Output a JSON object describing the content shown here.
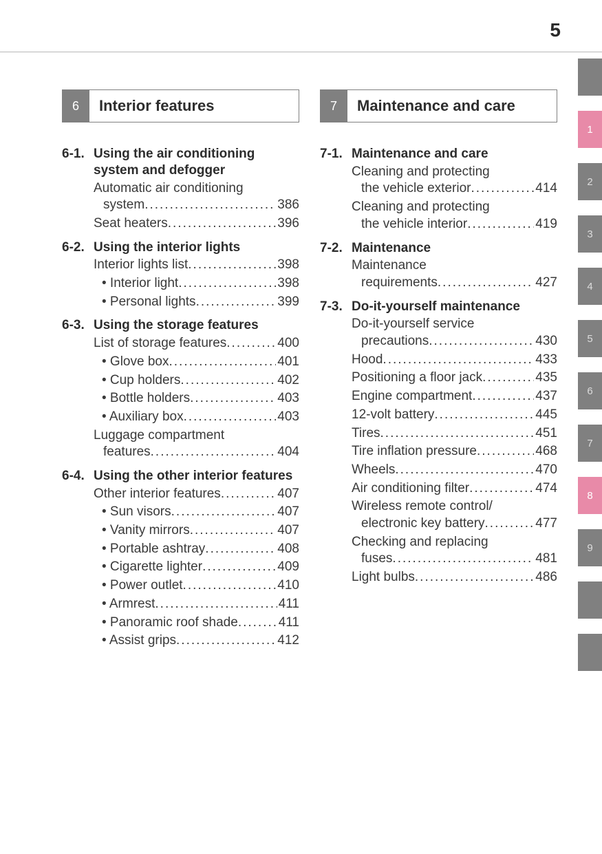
{
  "page_number": "5",
  "colors": {
    "text": "#3a3a3a",
    "heading": "#2d2d2d",
    "tab_gray": "#808080",
    "tab_pink": "#e88aa8",
    "rule": "#b8b8b8",
    "white": "#ffffff"
  },
  "side_tabs": [
    {
      "label": "",
      "style": "blank"
    },
    {
      "label": "1",
      "style": "pink"
    },
    {
      "label": "2",
      "style": "gray"
    },
    {
      "label": "3",
      "style": "gray"
    },
    {
      "label": "4",
      "style": "gray"
    },
    {
      "label": "5",
      "style": "gray"
    },
    {
      "label": "6",
      "style": "gray"
    },
    {
      "label": "7",
      "style": "gray"
    },
    {
      "label": "8",
      "style": "pink"
    },
    {
      "label": "9",
      "style": "gray"
    },
    {
      "label": "",
      "style": "blank"
    },
    {
      "label": "",
      "style": "blank"
    }
  ],
  "left": {
    "chapter_num": "6",
    "chapter_title": "Interior features",
    "sections": [
      {
        "num": "6-1.",
        "title": "Using the air conditioning system and defogger",
        "entries": [
          {
            "text": "Automatic air conditioning",
            "cont": "system",
            "page": "386"
          },
          {
            "text": "Seat heaters",
            "page": "396"
          }
        ]
      },
      {
        "num": "6-2.",
        "title": "Using the interior lights",
        "entries": [
          {
            "text": "Interior lights list",
            "page": "398"
          },
          {
            "text": "• Interior light",
            "page": "398",
            "sub": true
          },
          {
            "text": "• Personal lights",
            "page": "399",
            "sub": true
          }
        ]
      },
      {
        "num": "6-3.",
        "title": "Using the storage features",
        "entries": [
          {
            "text": "List of storage features",
            "page": "400"
          },
          {
            "text": "• Glove box",
            "page": "401",
            "sub": true
          },
          {
            "text": "• Cup holders",
            "page": "402",
            "sub": true
          },
          {
            "text": "• Bottle holders",
            "page": "403",
            "sub": true
          },
          {
            "text": "• Auxiliary box",
            "page": "403",
            "sub": true
          },
          {
            "text": "Luggage compartment",
            "cont": "features",
            "page": "404"
          }
        ]
      },
      {
        "num": "6-4.",
        "title": "Using the other interior features",
        "entries": [
          {
            "text": "Other interior features",
            "page": "407"
          },
          {
            "text": "• Sun visors",
            "page": "407",
            "sub": true
          },
          {
            "text": "• Vanity mirrors",
            "page": "407",
            "sub": true
          },
          {
            "text": "• Portable ashtray",
            "page": "408",
            "sub": true
          },
          {
            "text": "• Cigarette lighter",
            "page": "409",
            "sub": true
          },
          {
            "text": "• Power outlet",
            "page": "410",
            "sub": true
          },
          {
            "text": "• Armrest",
            "page": "411",
            "sub": true
          },
          {
            "text": "• Panoramic roof shade",
            "page": "411",
            "sub": true
          },
          {
            "text": "• Assist grips",
            "page": "412",
            "sub": true
          }
        ]
      }
    ]
  },
  "right": {
    "chapter_num": "7",
    "chapter_title": "Maintenance and care",
    "sections": [
      {
        "num": "7-1.",
        "title": "Maintenance and care",
        "entries": [
          {
            "text": "Cleaning and protecting",
            "cont": "the vehicle exterior",
            "page": "414"
          },
          {
            "text": "Cleaning and protecting",
            "cont": "the vehicle interior",
            "page": "419"
          }
        ]
      },
      {
        "num": "7-2.",
        "title": "Maintenance",
        "entries": [
          {
            "text": "Maintenance",
            "cont": "requirements",
            "page": "427"
          }
        ]
      },
      {
        "num": "7-3.",
        "title": "Do-it-yourself maintenance",
        "entries": [
          {
            "text": "Do-it-yourself service",
            "cont": "precautions",
            "page": "430"
          },
          {
            "text": "Hood",
            "page": "433"
          },
          {
            "text": "Positioning a floor jack",
            "page": "435"
          },
          {
            "text": "Engine compartment",
            "page": "437"
          },
          {
            "text": "12-volt battery",
            "page": "445"
          },
          {
            "text": "Tires",
            "page": "451"
          },
          {
            "text": "Tire inflation pressure",
            "page": "468"
          },
          {
            "text": "Wheels",
            "page": "470"
          },
          {
            "text": "Air conditioning filter",
            "page": "474"
          },
          {
            "text": "Wireless remote control/",
            "cont": "electronic key battery",
            "page": "477"
          },
          {
            "text": "Checking and replacing",
            "cont": "fuses",
            "page": "481"
          },
          {
            "text": "Light bulbs",
            "page": "486"
          }
        ]
      }
    ]
  }
}
